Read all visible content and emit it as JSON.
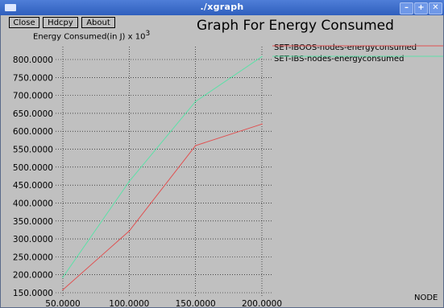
{
  "window": {
    "title": "./xgraph",
    "controls": [
      "–",
      "+",
      "✕"
    ]
  },
  "toolbar": {
    "close_label": "Close",
    "hdcpy_label": "Hdcpy",
    "about_label": "About"
  },
  "colors": {
    "background": "#c0c0c0",
    "titlebar": "#3a6ac8",
    "grid": "#000000",
    "series_1": "#e05050",
    "series_2": "#5ee0a8"
  },
  "chart_data": {
    "type": "line",
    "title": "Graph For Energy Consumed",
    "ylabel": "Energy Consumed(in J) x 10",
    "ylabel_exponent": "3",
    "xlabel": "NODE",
    "x": [
      50,
      100,
      150,
      200
    ],
    "xlim": [
      50,
      200
    ],
    "ylim": [
      150,
      800
    ],
    "x_tick_labels": [
      "50.0000",
      "100.0000",
      "150.0000",
      "200.0000"
    ],
    "y_tick_labels": [
      "150.0000",
      "200.0000",
      "250.0000",
      "300.0000",
      "350.0000",
      "400.0000",
      "450.0000",
      "500.0000",
      "550.0000",
      "600.0000",
      "650.0000",
      "700.0000",
      "750.0000",
      "800.0000"
    ],
    "grid": true,
    "legend_position": "top-right",
    "series": [
      {
        "name": "SET-IBOOS-nodes-energyconsumed",
        "values": [
          158,
          322,
          560,
          620
        ]
      },
      {
        "name": "SET-IBS-nodes-energyconsumed",
        "values": [
          193,
          460,
          683,
          808
        ]
      }
    ]
  }
}
